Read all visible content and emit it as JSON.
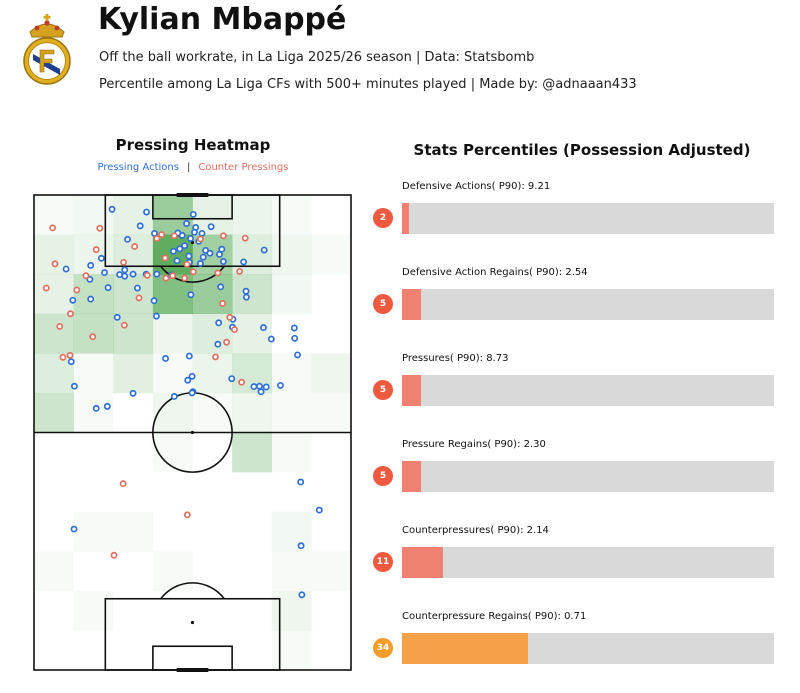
{
  "header": {
    "player_name": "Kylian Mbappé",
    "subtitle_1": "Off the ball workrate, in La Liga 2025/26 season | Data: Statsbomb",
    "subtitle_2": "Percentile among La Liga CFs with 500+ minutes played | Made by: @adnaaan433",
    "crest_icon": "real-madrid-crest-icon"
  },
  "colors": {
    "pressing": "#2e6fd6",
    "counter": "#e07060",
    "bar_low": "#f08070",
    "bar_mid": "#f5a14a",
    "badge_low": "#ee5a40",
    "badge_mid": "#f39c2a",
    "track": "#d9d9d9",
    "heat": "#3a9a3a"
  },
  "chart_data": [
    {
      "type": "scatter",
      "title": "Pressing Heatmap",
      "legend": [
        "Pressing Actions",
        "Counter Pressings"
      ],
      "legend_position": "top-center",
      "xlim": [
        0,
        80
      ],
      "ylim": [
        0,
        120
      ],
      "heatmap_grid": {
        "cols": 8,
        "rows": 12
      },
      "heatmap": [
        [
          0.05,
          0.08,
          0.15,
          0.6,
          0.15,
          0.12,
          0.05,
          0.0
        ],
        [
          0.15,
          0.12,
          0.2,
          0.95,
          0.55,
          0.2,
          0.1,
          0.05
        ],
        [
          0.15,
          0.35,
          0.3,
          0.75,
          0.6,
          0.3,
          0.08,
          0.0
        ],
        [
          0.3,
          0.35,
          0.3,
          0.1,
          0.2,
          0.15,
          0.0,
          0.0
        ],
        [
          0.2,
          0.05,
          0.18,
          0.05,
          0.12,
          0.25,
          0.05,
          0.1
        ],
        [
          0.3,
          0.05,
          0.0,
          0.1,
          0.05,
          0.1,
          0.05,
          0.05
        ],
        [
          0.0,
          0.0,
          0.0,
          0.05,
          0.0,
          0.3,
          0.05,
          0.0
        ],
        [
          0.0,
          0.0,
          0.0,
          0.0,
          0.0,
          0.0,
          0.0,
          0.0
        ],
        [
          0.0,
          0.05,
          0.05,
          0.0,
          0.0,
          0.0,
          0.08,
          0.0
        ],
        [
          0.05,
          0.0,
          0.0,
          0.05,
          0.0,
          0.0,
          0.05,
          0.05
        ],
        [
          0.0,
          0.05,
          0.0,
          0.0,
          0.0,
          0.0,
          0.1,
          0.0
        ],
        [
          0.0,
          0.0,
          0.0,
          0.0,
          0.0,
          0.0,
          0.05,
          0.0
        ]
      ],
      "series": [
        {
          "name": "Pressing Actions",
          "points": [
            [
              19.7,
              116.4
            ],
            [
              28.4,
              115.7
            ],
            [
              40.2,
              115.1
            ],
            [
              44.7,
              112.0
            ],
            [
              38.5,
              112.8
            ],
            [
              40.8,
              111.8
            ],
            [
              42.4,
              110.3
            ],
            [
              40.5,
              110.6
            ],
            [
              39.5,
              109.0
            ],
            [
              37.4,
              109.8
            ],
            [
              36.3,
              110.4
            ],
            [
              41.6,
              108.3
            ],
            [
              38.0,
              107.2
            ],
            [
              36.8,
              106.4
            ],
            [
              43.3,
              106.0
            ],
            [
              42.7,
              104.3
            ],
            [
              35.2,
              105.8
            ],
            [
              39.1,
              104.6
            ],
            [
              44.4,
              105.3
            ],
            [
              47.4,
              106.3
            ],
            [
              36.1,
              103.4
            ],
            [
              39.2,
              103.0
            ],
            [
              42.0,
              102.7
            ],
            [
              46.8,
              105.0
            ],
            [
              47.8,
              103.2
            ],
            [
              52.9,
              103.1
            ],
            [
              58.1,
              106.1
            ],
            [
              26.8,
              112.2
            ],
            [
              30.4,
              110.3
            ],
            [
              23.6,
              108.8
            ],
            [
              17.0,
              104.0
            ],
            [
              14.3,
              102.2
            ],
            [
              8.1,
              101.3
            ],
            [
              17.8,
              100.4
            ],
            [
              22.9,
              101.1
            ],
            [
              21.6,
              99.9
            ],
            [
              22.9,
              99.5
            ],
            [
              25.0,
              100.0
            ],
            [
              28.3,
              100.0
            ],
            [
              31.0,
              100.0
            ],
            [
              34.7,
              99.8
            ],
            [
              14.1,
              98.7
            ],
            [
              18.7,
              96.6
            ],
            [
              26.1,
              96.5
            ],
            [
              47.1,
              96.8
            ],
            [
              53.5,
              95.7
            ],
            [
              53.6,
              94.2
            ],
            [
              9.8,
              93.4
            ],
            [
              14.3,
              93.7
            ],
            [
              30.3,
              93.3
            ],
            [
              39.6,
              94.8
            ],
            [
              21.0,
              89.1
            ],
            [
              30.9,
              89.4
            ],
            [
              50.2,
              88.6
            ],
            [
              46.6,
              87.7
            ],
            [
              57.9,
              86.5
            ],
            [
              50.1,
              86.6
            ],
            [
              65.7,
              86.4
            ],
            [
              59.9,
              83.6
            ],
            [
              65.8,
              83.8
            ],
            [
              46.4,
              82.3
            ],
            [
              39.2,
              79.3
            ],
            [
              66.5,
              79.6
            ],
            [
              33.2,
              78.7
            ],
            [
              9.4,
              77.9
            ],
            [
              10.2,
              71.7
            ],
            [
              39.9,
              74.2
            ],
            [
              38.8,
              73.2
            ],
            [
              49.9,
              73.6
            ],
            [
              55.5,
              71.6
            ],
            [
              56.9,
              71.7
            ],
            [
              58.6,
              71.5
            ],
            [
              62.2,
              71.9
            ],
            [
              57.3,
              70.3
            ],
            [
              40.1,
              70.3
            ],
            [
              25.0,
              69.9
            ],
            [
              35.4,
              69.1
            ],
            [
              39.9,
              70.0
            ],
            [
              15.7,
              66.1
            ],
            [
              18.5,
              66.6
            ],
            [
              67.3,
              47.5
            ],
            [
              72.0,
              40.4
            ],
            [
              10.1,
              35.6
            ],
            [
              67.4,
              31.4
            ],
            [
              67.6,
              19.0
            ]
          ]
        },
        {
          "name": "Counter Pressings",
          "points": [
            [
              4.7,
              111.7
            ],
            [
              16.6,
              111.6
            ],
            [
              31.0,
              109.0
            ],
            [
              32.2,
              110.0
            ],
            [
              35.4,
              109.7
            ],
            [
              42.0,
              108.9
            ],
            [
              47.8,
              109.7
            ],
            [
              53.3,
              109.1
            ],
            [
              15.7,
              106.2
            ],
            [
              25.4,
              107.0
            ],
            [
              5.3,
              102.6
            ],
            [
              22.6,
              103.0
            ],
            [
              33.1,
              104.1
            ],
            [
              38.6,
              102.5
            ],
            [
              40.2,
              100.6
            ],
            [
              46.4,
              100.3
            ],
            [
              51.9,
              100.7
            ],
            [
              13.1,
              99.6
            ],
            [
              28.6,
              99.7
            ],
            [
              33.3,
              99.0
            ],
            [
              35.0,
              99.6
            ],
            [
              38.0,
              99.0
            ],
            [
              3.1,
              96.5
            ],
            [
              10.8,
              96.0
            ],
            [
              26.5,
              94.0
            ],
            [
              47.6,
              92.6
            ],
            [
              49.4,
              89.1
            ],
            [
              9.2,
              90.0
            ],
            [
              22.8,
              87.1
            ],
            [
              50.6,
              86.0
            ],
            [
              6.5,
              86.8
            ],
            [
              14.8,
              84.2
            ],
            [
              48.6,
              82.8
            ],
            [
              7.3,
              79.0
            ],
            [
              9.1,
              79.5
            ],
            [
              45.8,
              79.1
            ],
            [
              52.4,
              72.7
            ],
            [
              22.5,
              47.1
            ],
            [
              38.7,
              39.2
            ],
            [
              20.2,
              29.0
            ]
          ]
        }
      ]
    },
    {
      "type": "bar",
      "title": "Stats Percentiles (Possession Adjusted)",
      "xlim": [
        0,
        100
      ],
      "categories": [
        "Defensive Actions( P90): 9.21",
        "Defensive Action Regains( P90): 2.54",
        "Pressures( P90): 8.73",
        "Pressure Regains( P90): 2.30",
        "Counterpressures( P90): 2.14",
        "Counterpressure Regains( P90): 0.71"
      ],
      "values": [
        2,
        5,
        5,
        5,
        11,
        34
      ],
      "badges": [
        "2",
        "5",
        "5",
        "5",
        "11",
        "34"
      ]
    }
  ]
}
